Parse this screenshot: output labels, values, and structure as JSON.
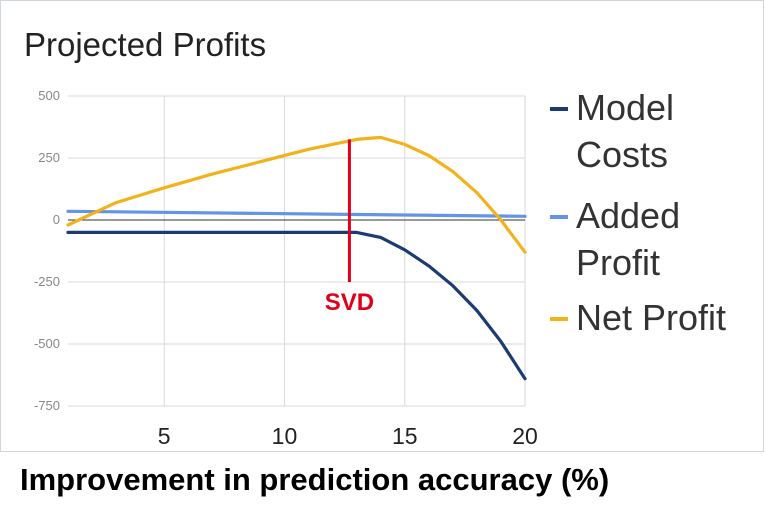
{
  "chart_data": {
    "type": "line",
    "title": "Projected Profits",
    "xlabel": "Improvement in prediction accuracy (%)",
    "ylabel": "",
    "xlim": [
      1,
      20
    ],
    "ylim": [
      -750,
      500
    ],
    "x_ticks": [
      5,
      10,
      15,
      20
    ],
    "y_ticks": [
      500,
      250,
      0,
      -250,
      -500,
      -750
    ],
    "grid": true,
    "legend_position": "right",
    "series": [
      {
        "name": "Model Costs",
        "color": "#1c3a73",
        "x": [
          1,
          5,
          10,
          13,
          14,
          15,
          16,
          17,
          18,
          19,
          20
        ],
        "y": [
          -50,
          -50,
          -50,
          -50,
          -70,
          -120,
          -185,
          -265,
          -365,
          -490,
          -640
        ]
      },
      {
        "name": "Added Profit",
        "color": "#6494e6",
        "x": [
          1,
          20
        ],
        "y": [
          35,
          15
        ]
      },
      {
        "name": "Net Profit",
        "color": "#f2b21b",
        "x": [
          1,
          3,
          5,
          7,
          9,
          11,
          13,
          14,
          15,
          16,
          17,
          18,
          19,
          20
        ],
        "y": [
          -20,
          70,
          130,
          185,
          235,
          285,
          325,
          333,
          305,
          260,
          195,
          110,
          0,
          -130
        ]
      }
    ],
    "annotations": [
      {
        "text": "SVD",
        "x": 12.7,
        "y_from": -250,
        "y_to": 325,
        "color": "#e0001b"
      }
    ]
  },
  "legend": {
    "items": [
      {
        "lines": [
          "Model",
          "Costs"
        ],
        "color": "#1c3a73"
      },
      {
        "lines": [
          "Added",
          "Profit"
        ],
        "color": "#6494e6"
      },
      {
        "lines": [
          "Net Profit"
        ],
        "color": "#f2b21b"
      }
    ]
  }
}
